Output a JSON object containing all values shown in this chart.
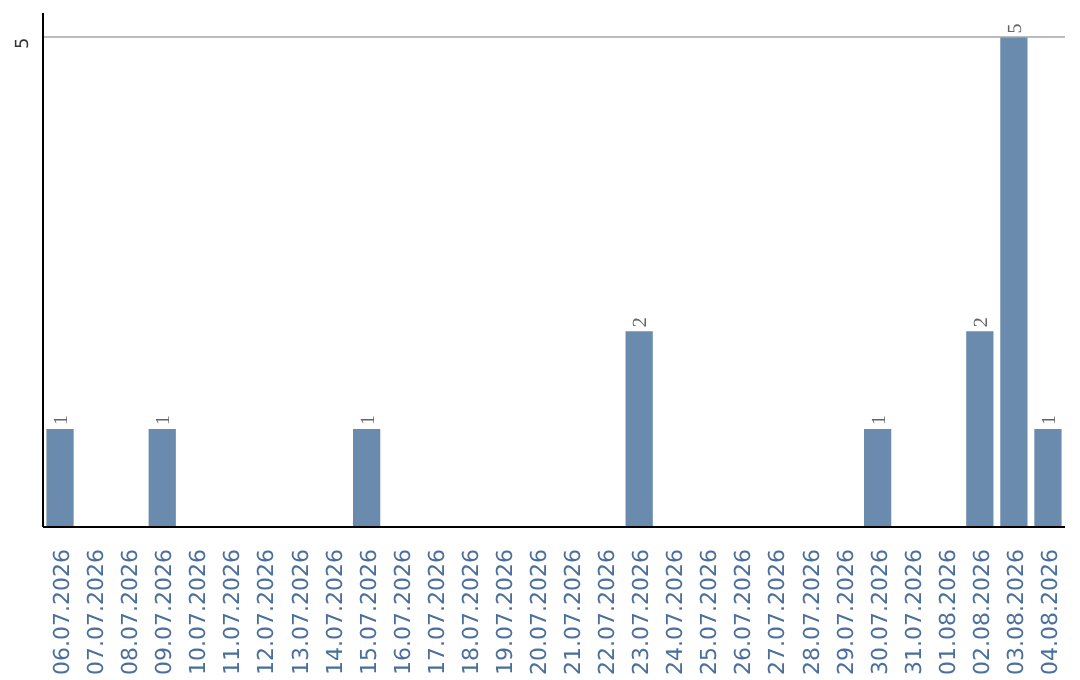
{
  "chart_data": {
    "type": "bar",
    "categories": [
      "06.07.2026",
      "07.07.2026",
      "08.07.2026",
      "09.07.2026",
      "10.07.2026",
      "11.07.2026",
      "12.07.2026",
      "13.07.2026",
      "14.07.2026",
      "15.07.2026",
      "16.07.2026",
      "17.07.2026",
      "18.07.2026",
      "19.07.2026",
      "20.07.2026",
      "21.07.2026",
      "22.07.2026",
      "23.07.2026",
      "24.07.2026",
      "25.07.2026",
      "26.07.2026",
      "27.07.2026",
      "28.07.2026",
      "29.07.2026",
      "30.07.2026",
      "31.07.2026",
      "01.08.2026",
      "02.08.2026",
      "03.08.2026",
      "04.08.2026"
    ],
    "values": [
      1,
      null,
      null,
      1,
      null,
      null,
      null,
      null,
      null,
      1,
      null,
      null,
      null,
      null,
      null,
      null,
      null,
      2,
      null,
      null,
      null,
      null,
      null,
      null,
      1,
      null,
      null,
      2,
      5,
      1
    ],
    "value_labels": [
      "1",
      null,
      null,
      "1",
      null,
      null,
      null,
      null,
      null,
      "1",
      null,
      null,
      null,
      null,
      null,
      null,
      null,
      "2",
      null,
      null,
      null,
      null,
      null,
      null,
      "1",
      null,
      null,
      "2",
      "5",
      "1"
    ],
    "color": "#6a8bad",
    "ylim": [
      0,
      5.25
    ],
    "yticks": [
      5
    ],
    "grid": "y"
  }
}
